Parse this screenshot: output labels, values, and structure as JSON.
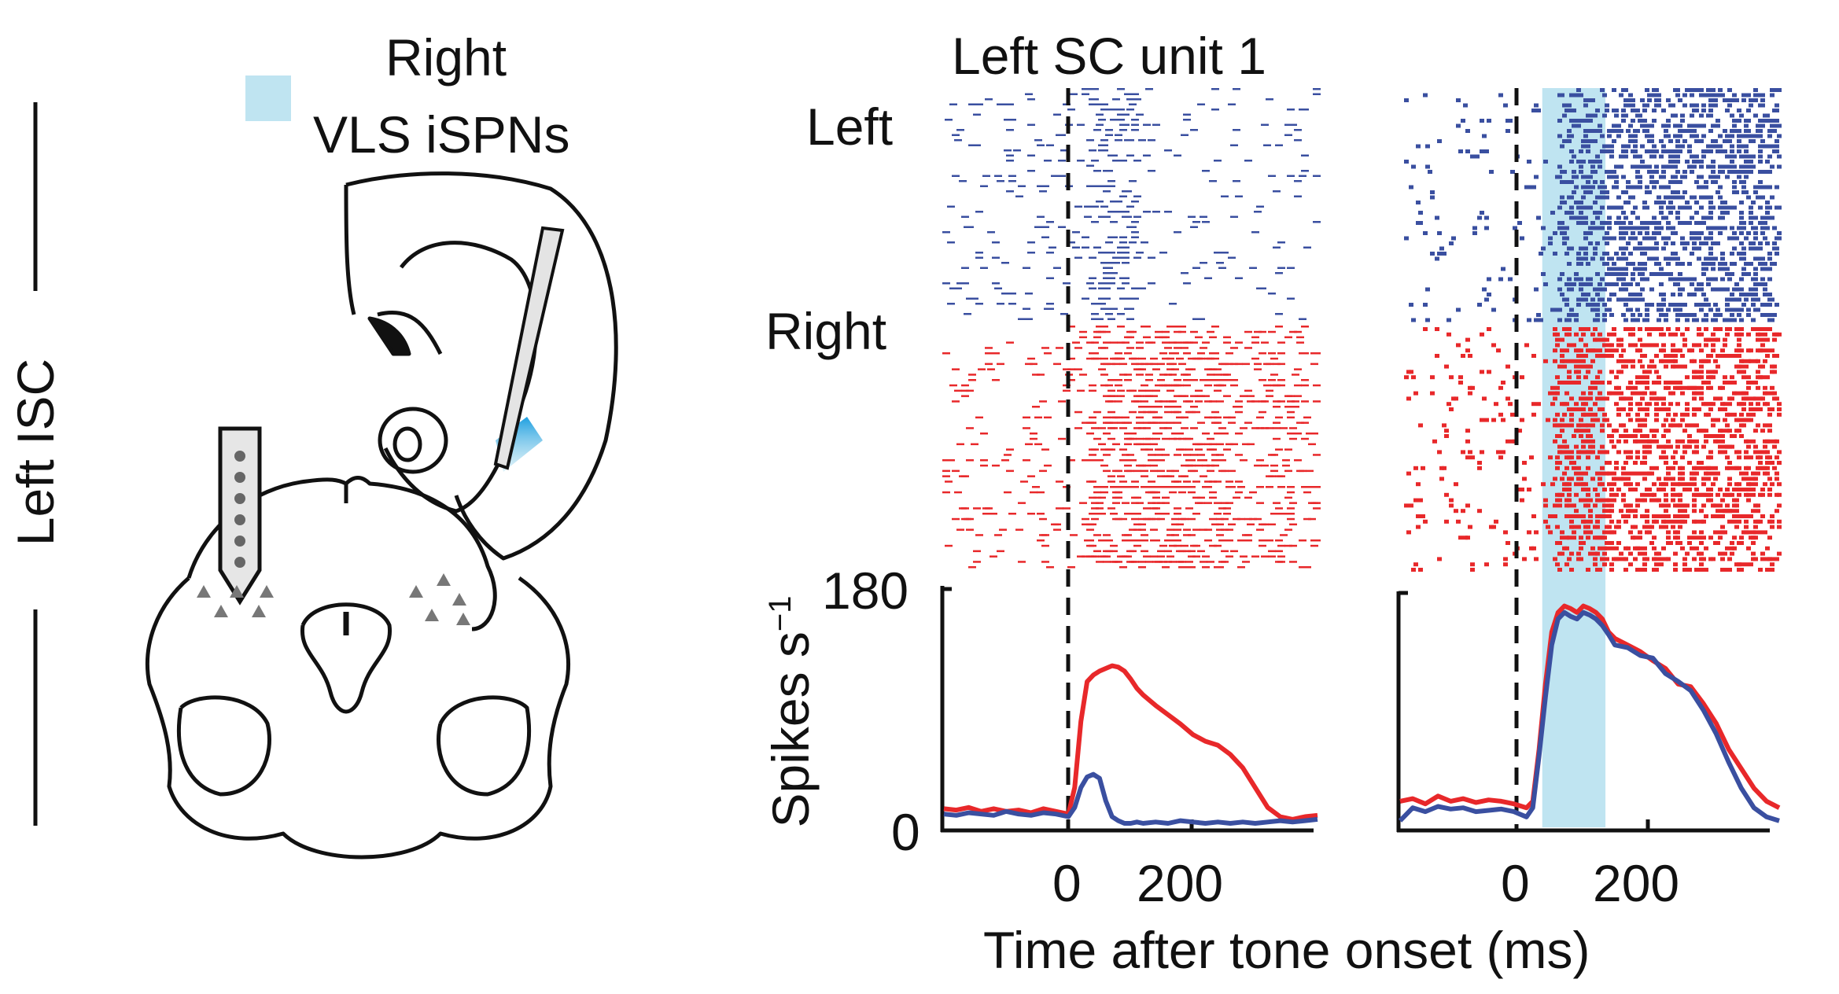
{
  "labels": {
    "left_isc": "Left ISC",
    "stim_line1": "Right",
    "stim_line2": "VLS iSPNs",
    "panel_title": "Left SC unit 1",
    "raster_left": "Left",
    "raster_right": "Right",
    "y_axis_label": "Spikes s",
    "y_axis_sup": "−1",
    "x_axis_label": "Time after tone onset (ms)"
  },
  "colors": {
    "left_trials": "#3a4fa0",
    "right_trials": "#e8282a",
    "light_stim": "#bfe4f1",
    "stim_legend": "#bfe4f1",
    "ink": "#111111"
  },
  "chart_data": [
    {
      "type": "line",
      "panel": "control",
      "x_ticks": [
        "0",
        "200"
      ],
      "y_ticks": [
        "0",
        "180"
      ],
      "xlim": [
        -200,
        400
      ],
      "ylim": [
        0,
        180
      ],
      "series": [
        {
          "name": "Right",
          "color": "#e8282a",
          "x": [
            -200,
            -180,
            -160,
            -140,
            -120,
            -100,
            -80,
            -60,
            -40,
            -20,
            0,
            10,
            20,
            30,
            40,
            50,
            60,
            70,
            80,
            90,
            100,
            110,
            120,
            140,
            160,
            180,
            200,
            220,
            240,
            260,
            280,
            300,
            320,
            340,
            360,
            380,
            400
          ],
          "y": [
            14,
            13,
            15,
            12,
            14,
            12,
            13,
            11,
            14,
            12,
            10,
            30,
            80,
            110,
            115,
            118,
            120,
            122,
            121,
            118,
            112,
            105,
            100,
            92,
            85,
            78,
            70,
            65,
            62,
            55,
            45,
            30,
            15,
            8,
            6,
            8,
            9
          ]
        },
        {
          "name": "Left",
          "color": "#3a4fa0",
          "x": [
            -200,
            -180,
            -160,
            -140,
            -120,
            -100,
            -80,
            -60,
            -40,
            -20,
            0,
            10,
            20,
            30,
            40,
            50,
            60,
            70,
            80,
            90,
            100,
            110,
            120,
            140,
            160,
            180,
            200,
            220,
            240,
            260,
            280,
            300,
            320,
            340,
            360,
            380,
            400
          ],
          "y": [
            10,
            9,
            11,
            10,
            9,
            12,
            10,
            9,
            11,
            10,
            8,
            15,
            30,
            38,
            40,
            37,
            20,
            8,
            5,
            3,
            3,
            4,
            3,
            4,
            3,
            5,
            4,
            3,
            4,
            3,
            4,
            3,
            4,
            5,
            4,
            5,
            6
          ]
        }
      ]
    },
    {
      "type": "line",
      "panel": "light",
      "x_ticks": [
        "0",
        "200"
      ],
      "xlim": [
        -200,
        400
      ],
      "ylim": [
        0,
        180
      ],
      "light_window": [
        25,
        125
      ],
      "series": [
        {
          "name": "Right",
          "color": "#e8282a",
          "x": [
            -200,
            -180,
            -160,
            -140,
            -120,
            -100,
            -80,
            -60,
            -40,
            -20,
            0,
            10,
            20,
            30,
            40,
            50,
            60,
            70,
            80,
            90,
            100,
            110,
            120,
            130,
            140,
            160,
            180,
            200,
            220,
            240,
            260,
            280,
            300,
            320,
            340,
            360,
            380,
            400
          ],
          "y": [
            20,
            22,
            18,
            24,
            20,
            22,
            19,
            21,
            20,
            18,
            15,
            20,
            60,
            110,
            150,
            165,
            170,
            168,
            165,
            170,
            168,
            165,
            160,
            150,
            145,
            140,
            135,
            128,
            122,
            110,
            108,
            95,
            80,
            60,
            45,
            30,
            20,
            15
          ]
        },
        {
          "name": "Left",
          "color": "#3a4fa0",
          "x": [
            -200,
            -180,
            -160,
            -140,
            -120,
            -100,
            -80,
            -60,
            -40,
            -20,
            0,
            10,
            20,
            30,
            40,
            50,
            60,
            70,
            80,
            90,
            100,
            110,
            120,
            130,
            140,
            160,
            180,
            200,
            220,
            240,
            260,
            280,
            300,
            320,
            340,
            360,
            380,
            400
          ],
          "y": [
            5,
            15,
            12,
            16,
            14,
            15,
            12,
            13,
            14,
            12,
            8,
            15,
            55,
            100,
            140,
            160,
            165,
            162,
            160,
            165,
            163,
            160,
            155,
            148,
            140,
            138,
            132,
            130,
            118,
            112,
            105,
            90,
            72,
            50,
            30,
            15,
            8,
            5
          ]
        }
      ]
    }
  ]
}
